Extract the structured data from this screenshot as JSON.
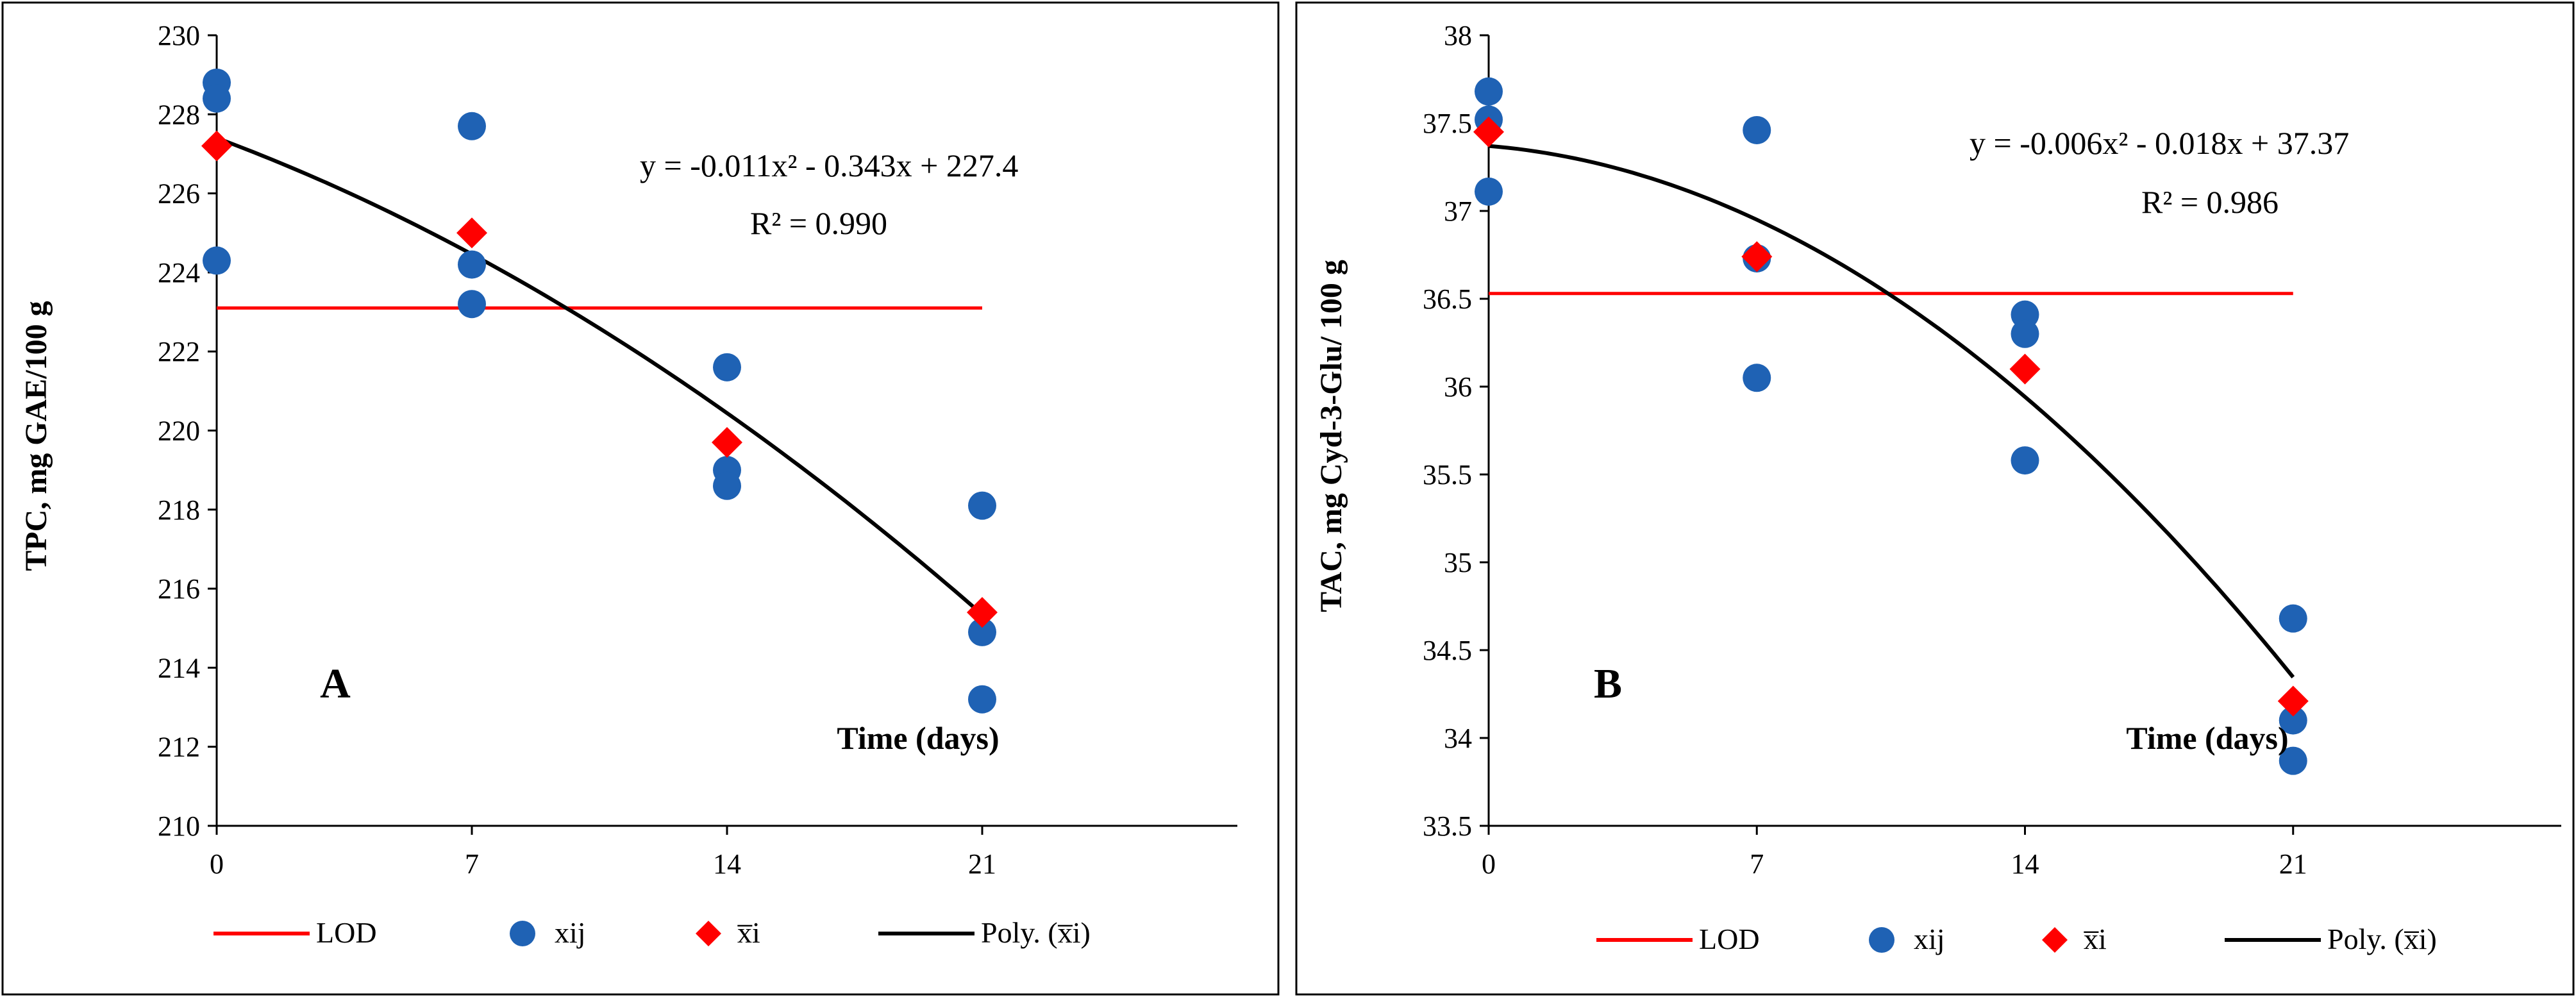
{
  "chart_data": [
    {
      "type": "scatter",
      "panel_label": "A",
      "ylabel": "TPC, mg GAE/100 g",
      "xlabel": "Time (days)",
      "ylim": [
        210,
        230
      ],
      "y_ticks": [
        210,
        212,
        214,
        216,
        218,
        220,
        222,
        224,
        226,
        228,
        230
      ],
      "y_tick_labels": [
        "210",
        "212",
        "214",
        "216",
        "218",
        "220",
        "222",
        "224",
        "226",
        "228",
        "230"
      ],
      "x_ticks": [
        0,
        7,
        14,
        21
      ],
      "x_tick_labels": [
        "0",
        "7",
        "14",
        "21"
      ],
      "xlim": [
        0,
        28
      ],
      "lod": 223.1,
      "equation": "y = -0.011x² - 0.343x + 227.4",
      "r2": "R² = 0.990",
      "fit_coefficients": [
        -0.011,
        -0.343,
        227.4
      ],
      "series": [
        {
          "name": "xij",
          "x": [
            0,
            0,
            0,
            7,
            7,
            7,
            14,
            14,
            14,
            21,
            21,
            21
          ],
          "y": [
            228.8,
            228.4,
            224.3,
            227.7,
            224.2,
            223.2,
            221.6,
            219.0,
            218.6,
            218.1,
            214.9,
            213.2
          ]
        },
        {
          "name": "x̅i",
          "x": [
            0,
            7,
            14,
            21
          ],
          "y": [
            227.2,
            225.0,
            219.7,
            215.4
          ]
        }
      ],
      "legend": [
        {
          "label": "LOD",
          "kind": "line",
          "color": "#ff0000"
        },
        {
          "label": "xij",
          "kind": "dot",
          "color": "#1f62b4"
        },
        {
          "label": "x̅i",
          "kind": "diamond",
          "color": "#ff0000"
        },
        {
          "label": "Poly. (x̅i)",
          "kind": "line",
          "color": "#000000"
        }
      ],
      "legend_position": "bottom",
      "grid": false
    },
    {
      "type": "scatter",
      "panel_label": "B",
      "ylabel": "TAC, mg Cyd-3-Glu/ 100 g",
      "xlabel": "Time (days)",
      "ylim": [
        33.5,
        38
      ],
      "y_ticks": [
        33.5,
        34,
        34.5,
        35,
        35.5,
        36,
        36.5,
        37,
        37.5,
        38
      ],
      "y_tick_labels": [
        "33.5",
        "34",
        "34.5",
        "35",
        "35.5",
        "36",
        "36.5",
        "37",
        "37.5",
        "38"
      ],
      "x_ticks": [
        0,
        7,
        14,
        21
      ],
      "x_tick_labels": [
        "0",
        "7",
        "14",
        "21"
      ],
      "xlim": [
        0,
        28
      ],
      "lod": 36.53,
      "equation": "y = -0.006x² - 0.018x + 37.37",
      "r2": "R² = 0.986",
      "fit_coefficients": [
        -0.006,
        -0.018,
        37.37
      ],
      "series": [
        {
          "name": "xij",
          "x": [
            0,
            0,
            0,
            7,
            7,
            7,
            14,
            14,
            14,
            21,
            21,
            21
          ],
          "y": [
            37.68,
            37.52,
            37.11,
            37.46,
            36.73,
            36.05,
            36.41,
            36.3,
            35.58,
            34.68,
            34.1,
            33.87
          ]
        },
        {
          "name": "x̅i",
          "x": [
            0,
            7,
            14,
            21
          ],
          "y": [
            37.45,
            36.74,
            36.1,
            34.21
          ]
        }
      ],
      "legend": [
        {
          "label": "LOD",
          "kind": "line",
          "color": "#ff0000"
        },
        {
          "label": "xij",
          "kind": "dot",
          "color": "#1f62b4"
        },
        {
          "label": "x̅i",
          "kind": "diamond",
          "color": "#ff0000"
        },
        {
          "label": "Poly. (x̅i)",
          "kind": "line",
          "color": "#000000"
        }
      ],
      "legend_position": "bottom",
      "grid": false
    }
  ]
}
